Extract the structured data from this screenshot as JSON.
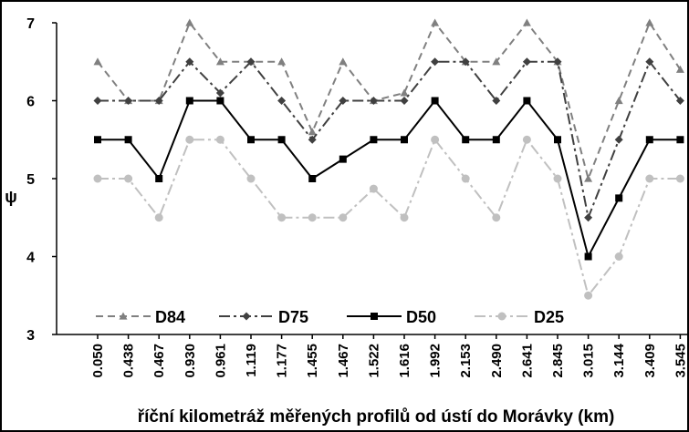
{
  "chart_data": {
    "type": "line",
    "y_label": "ψ",
    "x_label": "říční kilometráž měřených profilů od ústí do Morávky (km)",
    "categories": [
      "0.050",
      "0.438",
      "0.467",
      "0.930",
      "0.961",
      "1.119",
      "1.177",
      "1.455",
      "1.467",
      "1.522",
      "1.616",
      "1.992",
      "2.153",
      "2.490",
      "2.641",
      "2.845",
      "3.015",
      "3.144",
      "3.409",
      "3.545"
    ],
    "series": [
      {
        "name": "D84",
        "color": "#808080",
        "marker": "triangle",
        "linestyle": "dashed",
        "values": [
          6.5,
          6,
          6,
          7,
          6.5,
          6.5,
          6.5,
          5.6,
          6.5,
          6,
          6.1,
          7,
          6.5,
          6.5,
          7,
          6.5,
          5,
          6,
          7,
          6.4
        ]
      },
      {
        "name": "D75",
        "color": "#404040",
        "marker": "diamond",
        "linestyle": "dashdot",
        "values": [
          6,
          6,
          6,
          6.5,
          6.1,
          6.5,
          6,
          5.5,
          6,
          6,
          6,
          6.5,
          6.5,
          6,
          6.5,
          6.5,
          4.5,
          5.5,
          6.5,
          6
        ]
      },
      {
        "name": "D50",
        "color": "#000000",
        "marker": "square",
        "linestyle": "solid",
        "values": [
          5.5,
          5.5,
          5,
          6,
          6,
          5.5,
          5.5,
          5,
          5.25,
          5.5,
          5.5,
          6,
          5.5,
          5.5,
          6,
          5.5,
          4,
          4.75,
          5.5,
          5.5
        ]
      },
      {
        "name": "D25",
        "color": "#c0c0c0",
        "marker": "circle",
        "linestyle": "dashdot",
        "values": [
          5,
          5,
          4.5,
          5.5,
          5.5,
          5,
          4.5,
          4.5,
          4.5,
          4.87,
          4.5,
          5.5,
          5,
          4.5,
          5.5,
          5,
          3.5,
          4,
          5,
          5
        ]
      }
    ],
    "ylim": [
      3,
      7
    ],
    "yticks": [
      3,
      4,
      5,
      6,
      7
    ],
    "grid": false,
    "legend": "lower left"
  }
}
